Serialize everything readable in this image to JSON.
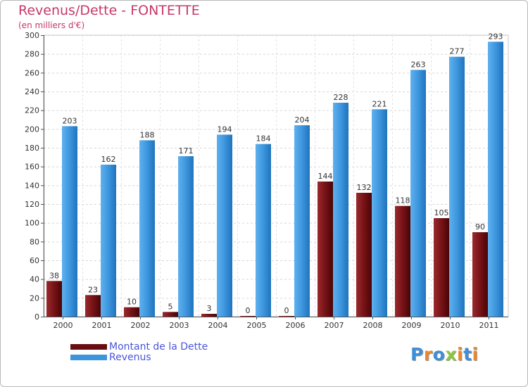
{
  "title": "Revenus/Dette - FONTETTE",
  "subtitle": "(en milliers d'€)",
  "colors": {
    "title": "#c6386a",
    "dette": "#7a1418",
    "revenus": "#3d96dd",
    "legend_text": "#4a55d8"
  },
  "chart_data": {
    "type": "bar",
    "categories": [
      "2000",
      "2001",
      "2002",
      "2003",
      "2004",
      "2005",
      "2006",
      "2007",
      "2008",
      "2009",
      "2010",
      "2011"
    ],
    "series": [
      {
        "name": "Montant de la Dette",
        "values": [
          38,
          23,
          10,
          5,
          3,
          0,
          0,
          144,
          132,
          118,
          105,
          90
        ]
      },
      {
        "name": "Revenus",
        "values": [
          203,
          162,
          188,
          171,
          194,
          184,
          204,
          228,
          221,
          263,
          277,
          293
        ]
      }
    ],
    "ylim": [
      0,
      300
    ],
    "yticks": [
      0,
      20,
      40,
      60,
      80,
      100,
      120,
      140,
      160,
      180,
      200,
      220,
      240,
      260,
      280,
      300
    ],
    "grid": true,
    "legend_position": "bottom-left"
  },
  "legend": {
    "items": [
      {
        "label": "Montant de la Dette"
      },
      {
        "label": "Revenus"
      }
    ]
  },
  "logo": {
    "text": "Proxiti"
  }
}
